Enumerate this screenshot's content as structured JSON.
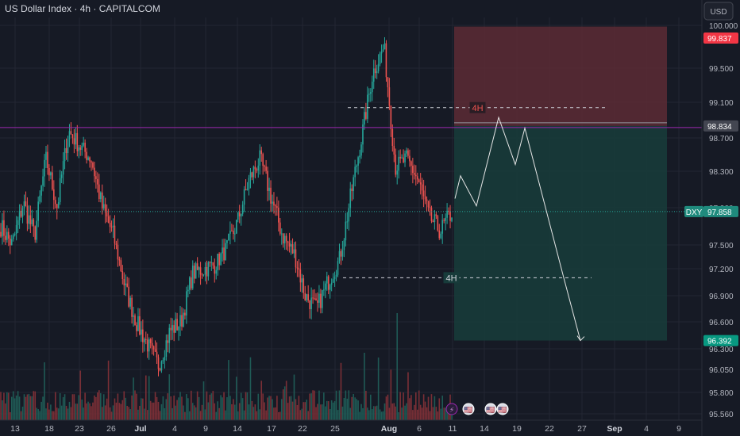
{
  "header": {
    "title": "US Dollar Index · 4h · CAPITALCOM"
  },
  "currency": {
    "label": "USD"
  },
  "colors": {
    "background": "#161a25",
    "up": "#26a69a",
    "down": "#ef5350",
    "stop_zone": "#5c2b35",
    "target_zone": "#173b3a",
    "purple_line": "#9c27b0",
    "projection": "#e6e6e6"
  },
  "chart_data": {
    "type": "candlestick",
    "title": "US Dollar Index · 4h · CAPITALCOM",
    "symbol": "DXY",
    "timeframe": "4h",
    "y_range": [
      95.45,
      100.2
    ],
    "y_ticks": [
      "100.000",
      "99.500",
      "99.100",
      "98.700",
      "98.300",
      "97.900",
      "97.500",
      "97.200",
      "96.900",
      "96.600",
      "96.300",
      "96.050",
      "95.800",
      "95.560"
    ],
    "x_ticks": [
      {
        "label": "13"
      },
      {
        "label": "18"
      },
      {
        "label": "23"
      },
      {
        "label": "26"
      },
      {
        "label": "Jul",
        "bold": true
      },
      {
        "label": "4"
      },
      {
        "label": "9"
      },
      {
        "label": "14"
      },
      {
        "label": "17"
      },
      {
        "label": "22"
      },
      {
        "label": "25"
      },
      {
        "label": "Aug",
        "bold": true
      },
      {
        "label": "6"
      },
      {
        "label": "11"
      },
      {
        "label": "14"
      },
      {
        "label": "19"
      },
      {
        "label": "22"
      },
      {
        "label": "27"
      },
      {
        "label": "Sep",
        "bold": true
      },
      {
        "label": "4"
      },
      {
        "label": "9"
      }
    ],
    "price_badges": [
      {
        "value": "99.837",
        "type": "stop"
      },
      {
        "value": "98.834",
        "type": "level"
      },
      {
        "value": "97.858",
        "type": "current"
      },
      {
        "value": "96.392",
        "type": "target"
      }
    ],
    "current_symbol_badge": "DXY",
    "levels": [
      {
        "label": "4H",
        "price": 99.04,
        "color": "#ef5350"
      },
      {
        "label": "4H",
        "price": 97.1,
        "color": "#d1d4dc"
      }
    ],
    "horizontal_line": {
      "price": 98.834
    },
    "position": {
      "type": "short",
      "entry": 98.834,
      "stop": 99.837,
      "target": 96.392
    },
    "projection_path": [
      98.0,
      98.25,
      97.92,
      98.93,
      98.38,
      98.81,
      97.1,
      96.392
    ],
    "price_anchors": [
      97.7,
      97.5,
      97.95,
      97.6,
      98.45,
      97.9,
      98.78,
      98.6,
      98.45,
      97.9,
      97.6,
      97.0,
      96.6,
      96.35,
      96.1,
      96.5,
      96.6,
      97.15,
      97.2,
      97.25,
      97.45,
      97.75,
      98.2,
      98.45,
      98.0,
      97.6,
      97.4,
      96.9,
      96.75,
      97.05,
      97.3,
      98.0,
      98.7,
      99.45,
      99.75,
      98.35,
      98.45,
      98.2,
      97.8,
      97.65,
      97.85
    ]
  },
  "bottom_icons": [
    {
      "name": "lightning-icon",
      "glyph": "⚡"
    },
    {
      "name": "flag-icon",
      "glyph": "🇺🇸"
    },
    {
      "name": "flag-icon",
      "glyph": "🇺🇸"
    },
    {
      "name": "flag-icon",
      "glyph": "🇺🇸"
    }
  ]
}
